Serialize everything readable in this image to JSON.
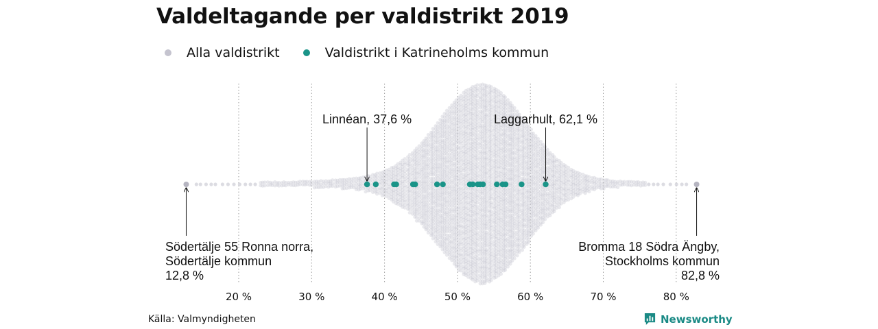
{
  "chart_data": {
    "type": "scatter",
    "title": "Valdeltagande per valdistrikt 2019",
    "xlabel": "",
    "ylabel": "",
    "xlim": [
      10,
      86
    ],
    "xticks": [
      20,
      30,
      40,
      50,
      60,
      70,
      80
    ],
    "tick_labels": [
      "20 %",
      "30 %",
      "40 %",
      "50 %",
      "60 %",
      "70 %",
      "80 %"
    ],
    "grid": "vertical dotted",
    "legend_position": "top-left",
    "series": [
      {
        "name": "Alla valdistrikt",
        "color": "#c5c4cf",
        "distribution": "beeswarm of all voting districts",
        "min": 12.8,
        "max": 82.8,
        "peak": 53.5
      },
      {
        "name": "Valdistrikt i Katrineholms kommun",
        "color": "#1a9488",
        "x": [
          37.6,
          38.8,
          41.3,
          41.6,
          43.9,
          44.2,
          47.2,
          48.0,
          51.7,
          52.1,
          52.8,
          53.1,
          53.5,
          55.4,
          56.2,
          56.6,
          58.8,
          62.1
        ]
      }
    ],
    "annotations": [
      {
        "name": "linnean",
        "lines": [
          "Linnéan, 37,6 %"
        ],
        "x": 37.6,
        "align": "middle"
      },
      {
        "name": "laggarhult",
        "lines": [
          "Laggarhult, 62,1 %"
        ],
        "x": 62.1,
        "align": "middle"
      },
      {
        "name": "sodertalje",
        "lines": [
          "Södertälje 55 Ronna norra,",
          "Södertälje kommun",
          "12,8 %"
        ],
        "x": 12.8,
        "align": "start"
      },
      {
        "name": "bromma",
        "lines": [
          "Bromma 18 Södra Ängby,",
          "Stockholms kommun",
          "82,8 %"
        ],
        "x": 82.8,
        "align": "end"
      }
    ]
  },
  "source": "Källa: Valmyndigheten",
  "brand": "Newsworthy",
  "colors": {
    "accent": "#1a9488",
    "background_dots": "#c5c4cf",
    "brand": "#1a8a85"
  }
}
